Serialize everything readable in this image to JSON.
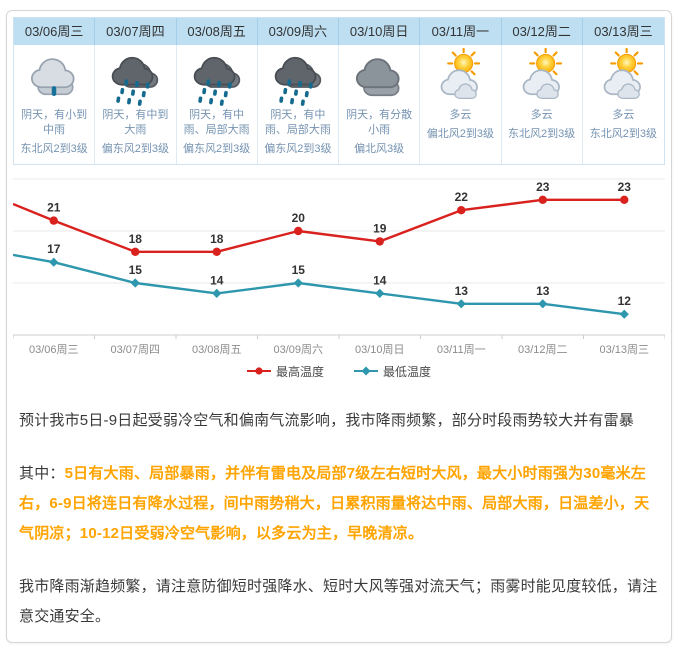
{
  "forecast": {
    "days": [
      {
        "date": "03/06周三",
        "icon": "overcast-light-rain",
        "desc": "阴天，有小到中雨",
        "wind": "东北风2到3级"
      },
      {
        "date": "03/07周四",
        "icon": "heavy-rain",
        "desc": "阴天，有中到大雨",
        "wind": "偏东风2到3级"
      },
      {
        "date": "03/08周五",
        "icon": "heavy-rain",
        "desc": "阴天，有中雨、局部大雨",
        "wind": "偏东风2到3级"
      },
      {
        "date": "03/09周六",
        "icon": "heavy-rain",
        "desc": "阴天，有中雨、局部大雨",
        "wind": "偏东风2到3级"
      },
      {
        "date": "03/10周日",
        "icon": "overcast",
        "desc": "阴天，有分散小雨",
        "wind": "偏北风3级"
      },
      {
        "date": "03/11周一",
        "icon": "partly-cloudy",
        "desc": "多云",
        "wind": "偏北风2到3级"
      },
      {
        "date": "03/12周二",
        "icon": "partly-cloudy",
        "desc": "多云",
        "wind": "东北风2到3级"
      },
      {
        "date": "03/13周三",
        "icon": "partly-cloudy",
        "desc": "多云",
        "wind": "东北风2到3级"
      }
    ]
  },
  "chart_data": {
    "type": "line",
    "categories": [
      "03/06周三",
      "03/07周四",
      "03/08周五",
      "03/09周六",
      "03/10周日",
      "03/11周一",
      "03/12周二",
      "03/13周三"
    ],
    "series": [
      {
        "name": "最高温度",
        "color": "#d9211e",
        "marker": "circle",
        "values": [
          21,
          18,
          18,
          20,
          19,
          22,
          23,
          23
        ]
      },
      {
        "name": "最低温度",
        "color": "#2e97ae",
        "marker": "diamond",
        "values": [
          17,
          15,
          14,
          15,
          14,
          13,
          13,
          12
        ]
      }
    ],
    "ylim": [
      10,
      25
    ],
    "grid_step": 5,
    "grid": true,
    "legend_position": "bottom",
    "left_edge_entry": {
      "最高温度": 22.6,
      "最低温度": 17.7
    }
  },
  "summary": {
    "p1": "预计我市5日-9日起受弱冷空气和偏南气流影响，我市降雨频繁，部分时段雨势较大并有雷暴",
    "p2_prefix": "其中：",
    "p2_highlight": "5日有大雨、局部暴雨，并伴有雷电及局部7级左右短时大风，最大小时雨强为30毫米左右，6-9日将连日有降水过程，间中雨势稍大，日累积雨量将达中雨、局部大雨，日温差小，天气阴凉；10-12日受弱冷空气影响，以多云为主，早晚清凉。",
    "p3": "我市降雨渐趋频繁，请注意防御短时强降水、短时大风等强对流天气；雨雾时能见度较低，请注意交通安全。"
  },
  "colors": {
    "header_bg": "#bedff2",
    "table_border": "#cfe3f2",
    "desc_text": "#7593b1",
    "high_line": "#d9211e",
    "low_line": "#2e97ae",
    "highlight_text": "#ffa400",
    "axis_label": "#8c8c8c",
    "body_text": "#3a3a3a"
  }
}
